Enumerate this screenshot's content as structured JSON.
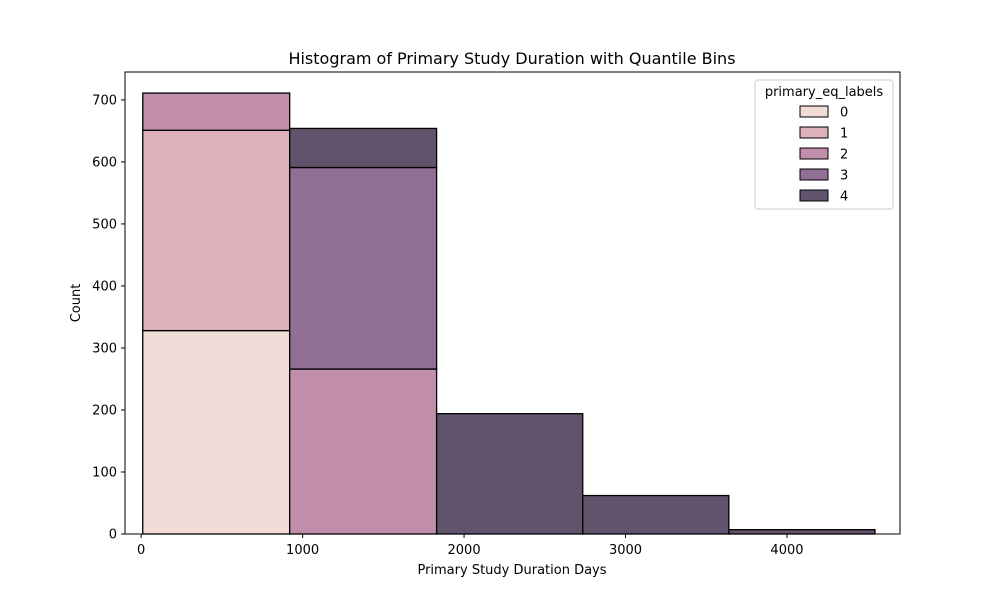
{
  "chart_data": {
    "type": "bar",
    "title": "Histogram of Primary Study Duration with Quantile Bins",
    "xlabel": "Primary Study Duration Days",
    "ylabel": "Count",
    "xlim": [
      -100,
      4700
    ],
    "ylim": [
      0,
      745
    ],
    "xticks": [
      0,
      1000,
      2000,
      3000,
      4000
    ],
    "yticks": [
      0,
      100,
      200,
      300,
      400,
      500,
      600,
      700
    ],
    "bin_edges": [
      10,
      920,
      1830,
      2735,
      3640,
      4545
    ],
    "legend": {
      "title": "primary_eq_labels",
      "position": "top-right",
      "entries": [
        "0",
        "1",
        "2",
        "3",
        "4"
      ]
    },
    "series": [
      {
        "name": "0",
        "color": "#f0dbd6",
        "values": [
          328,
          0,
          0,
          0,
          0
        ]
      },
      {
        "name": "1",
        "color": "#ddb1ba",
        "values": [
          323,
          0,
          0,
          0,
          0
        ]
      },
      {
        "name": "2",
        "color": "#c08daa",
        "values": [
          60,
          266,
          0,
          0,
          0
        ]
      },
      {
        "name": "3",
        "color": "#926f94",
        "values": [
          0,
          325,
          0,
          0,
          0
        ]
      },
      {
        "name": "4",
        "color": "#62536c",
        "values": [
          0,
          63,
          194,
          62,
          7
        ]
      }
    ]
  }
}
